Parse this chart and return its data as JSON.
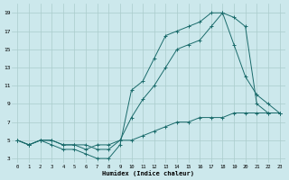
{
  "xlabel": "Humidex (Indice chaleur)",
  "bg_color": "#cce8ec",
  "grid_color": "#aacccc",
  "line_color": "#1a6b6b",
  "xlim": [
    -0.5,
    23.5
  ],
  "ylim": [
    2.5,
    20.0
  ],
  "xtick_vals": [
    0,
    1,
    2,
    3,
    4,
    5,
    6,
    7,
    8,
    9,
    10,
    11,
    12,
    13,
    14,
    15,
    16,
    17,
    18,
    19,
    20,
    21,
    22,
    23
  ],
  "xtick_labels": [
    "0",
    "1",
    "2",
    "3",
    "4",
    "5",
    "6",
    "7",
    "8",
    "9",
    "10",
    "11",
    "12",
    "13",
    "14",
    "15",
    "16",
    "17",
    "18",
    "19",
    "20",
    "21",
    "22",
    "23"
  ],
  "ytick_vals": [
    3,
    5,
    7,
    9,
    11,
    13,
    15,
    17,
    19
  ],
  "ytick_labels": [
    "3",
    "5",
    "7",
    "9",
    "11",
    "13",
    "15",
    "17",
    "19"
  ],
  "line1_x": [
    0,
    1,
    2,
    3,
    4,
    5,
    6,
    7,
    8,
    9,
    10,
    11,
    12,
    13,
    14,
    15,
    16,
    17,
    18,
    19,
    20,
    21,
    22,
    23
  ],
  "line1_y": [
    5,
    4.5,
    5,
    4.5,
    4,
    4,
    3.5,
    3,
    3,
    4.5,
    10.5,
    11.5,
    14,
    16.5,
    17,
    17.5,
    18,
    19,
    19,
    18.5,
    17.5,
    9,
    8,
    8
  ],
  "line2_x": [
    0,
    1,
    2,
    3,
    4,
    5,
    6,
    7,
    8,
    9,
    10,
    11,
    12,
    13,
    14,
    15,
    16,
    17,
    18,
    19,
    20,
    21,
    22,
    23
  ],
  "line2_y": [
    5,
    4.5,
    5,
    5,
    4.5,
    4.5,
    4,
    4.5,
    4.5,
    5,
    5,
    5.5,
    6,
    6.5,
    7,
    7,
    7.5,
    7.5,
    7.5,
    8,
    8,
    8,
    8,
    8
  ],
  "line3_x": [
    0,
    1,
    2,
    3,
    4,
    5,
    6,
    7,
    8,
    9,
    10,
    11,
    12,
    13,
    14,
    15,
    16,
    17,
    18,
    19,
    20,
    21,
    22,
    23
  ],
  "line3_y": [
    5,
    4.5,
    5,
    5,
    4.5,
    4.5,
    4.5,
    4,
    4,
    5,
    7.5,
    9.5,
    11,
    13,
    15,
    15.5,
    16,
    17.5,
    19,
    15.5,
    12,
    10,
    9,
    8
  ]
}
